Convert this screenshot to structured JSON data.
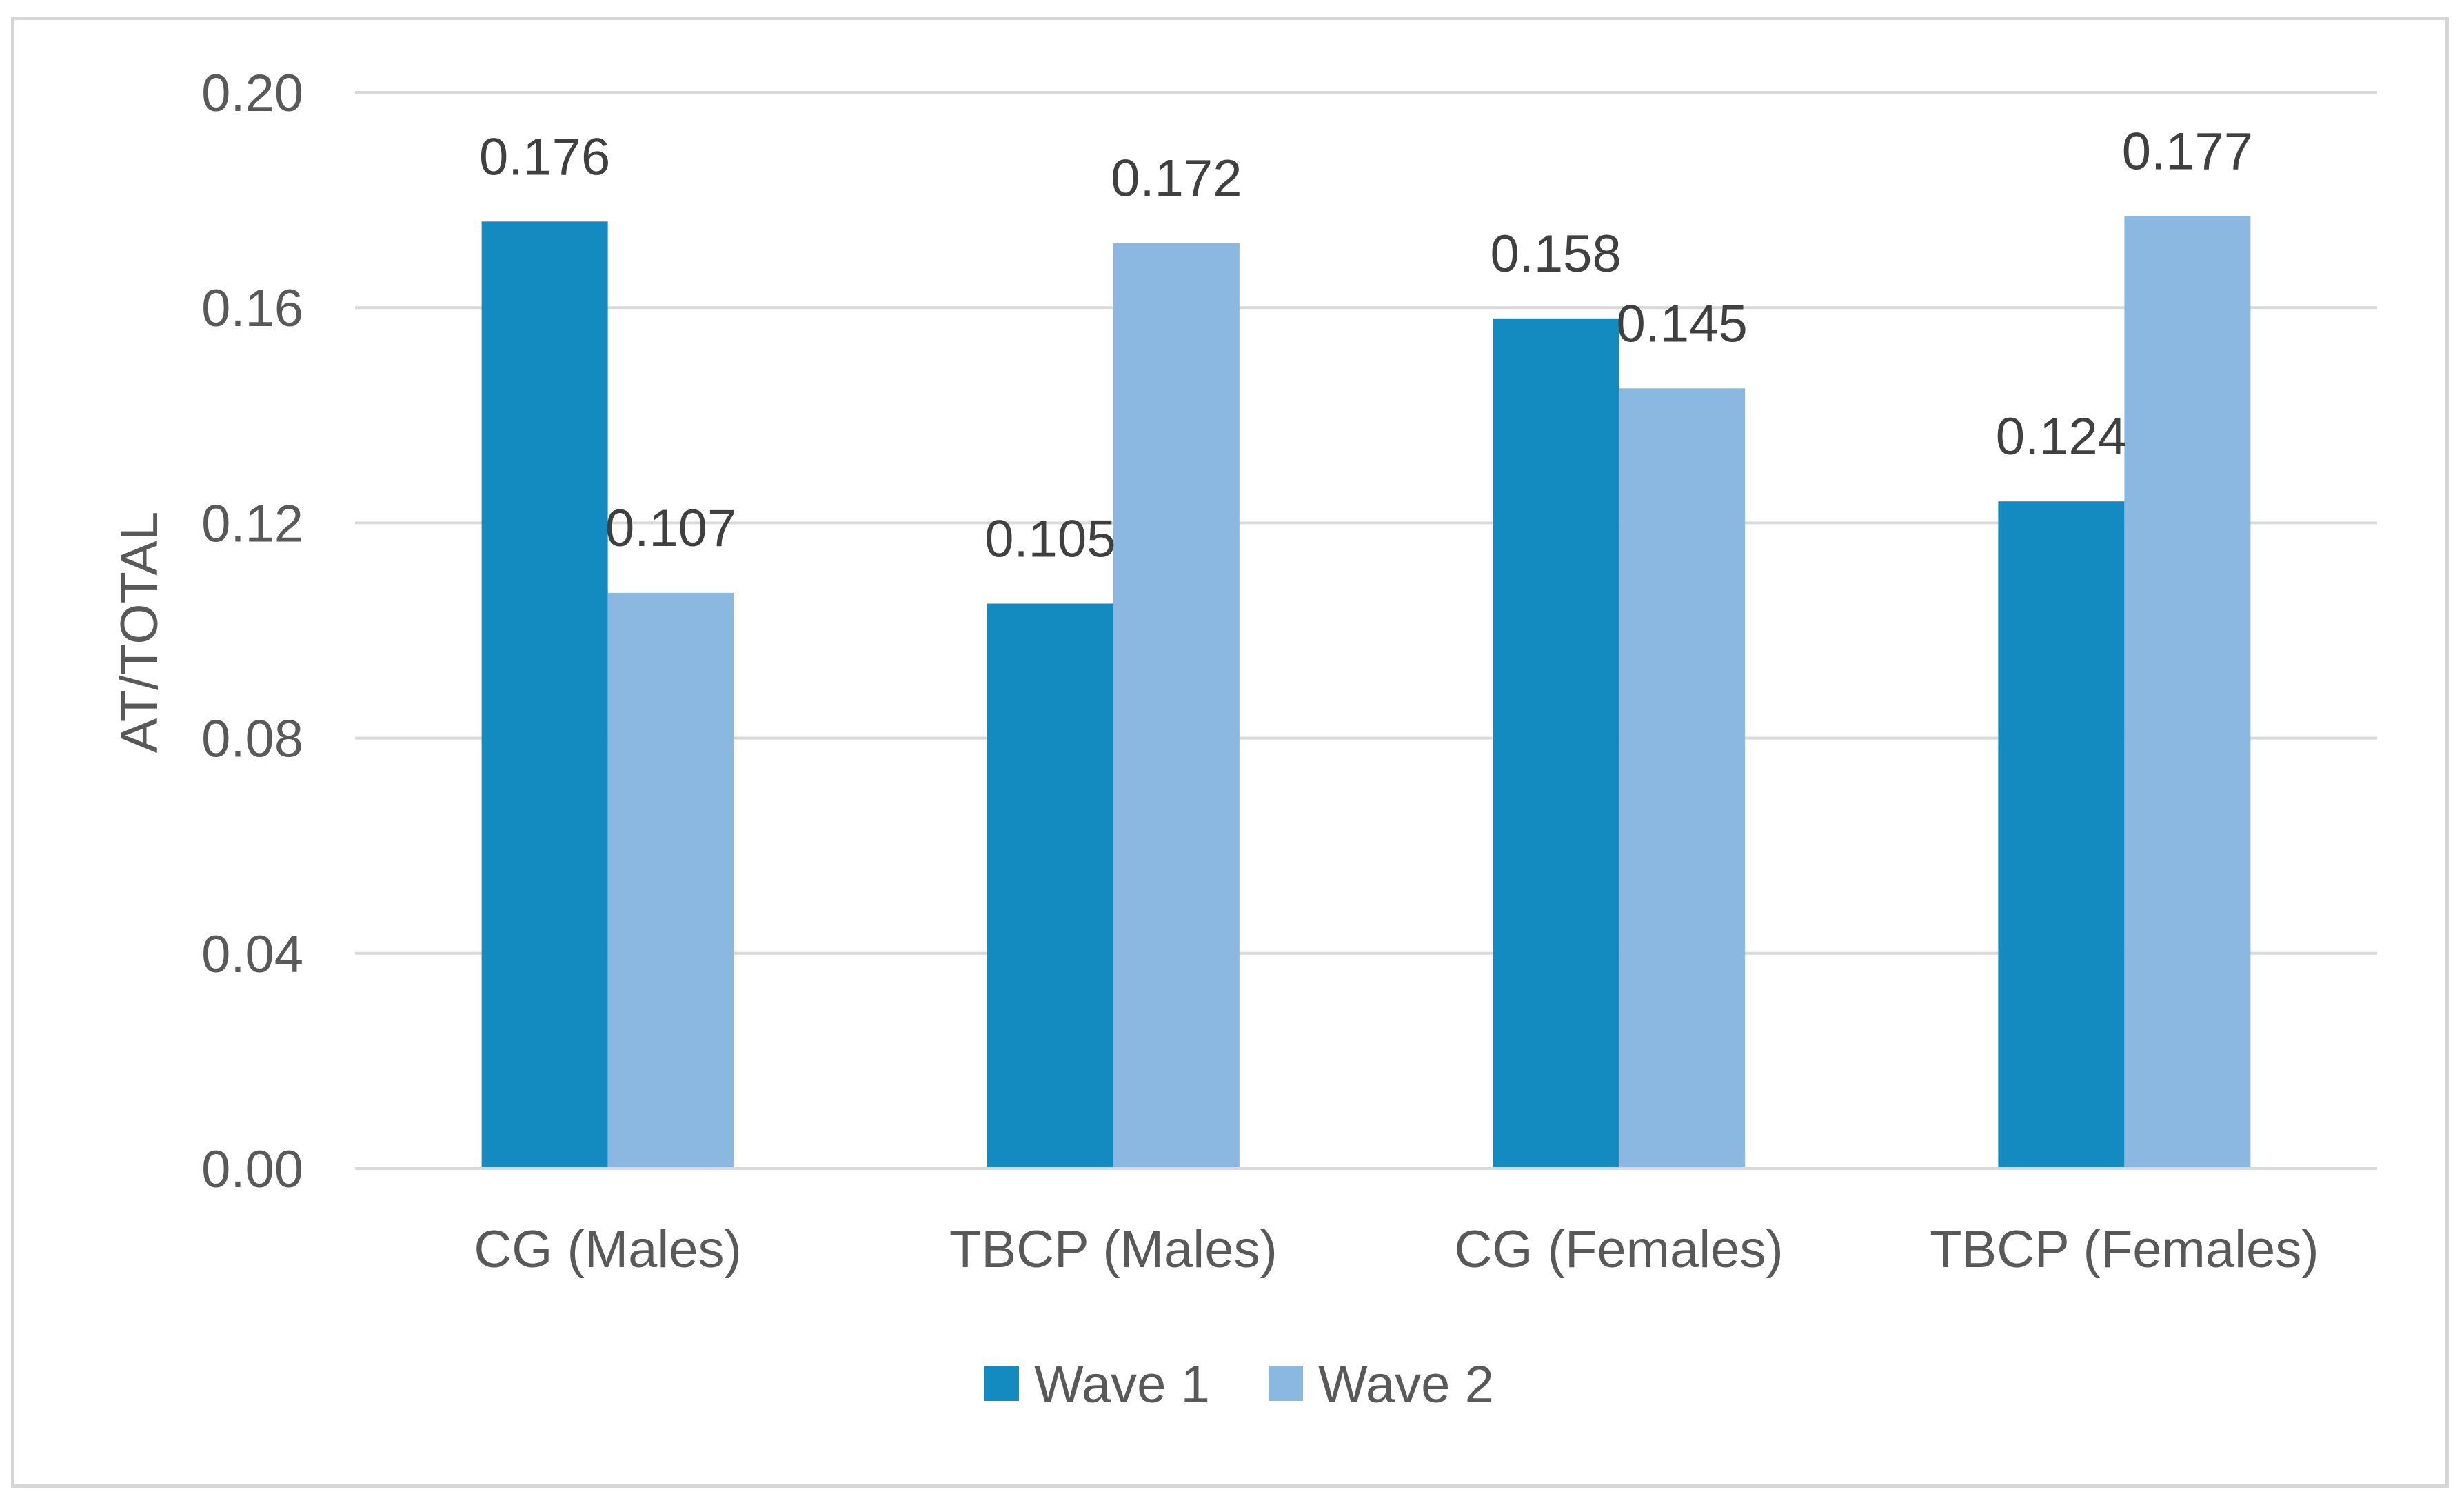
{
  "chart_data": {
    "type": "bar",
    "title": "",
    "xlabel": "",
    "ylabel": "AT/TOTAL",
    "ylim": [
      0,
      0.2
    ],
    "yticks": [
      "0.00",
      "0.04",
      "0.08",
      "0.12",
      "0.16",
      "0.20"
    ],
    "ytick_values": [
      0,
      0.04,
      0.08,
      0.12,
      0.16,
      0.2
    ],
    "categories": [
      "CG (Males)",
      "TBCP (Males)",
      "CG (Females)",
      "TBCP (Females)"
    ],
    "series": [
      {
        "name": "Wave 1",
        "color": "#138bc1",
        "values": [
          0.176,
          0.105,
          0.158,
          0.124
        ],
        "labels": [
          "0.176",
          "0.105",
          "0.158",
          "0.124"
        ]
      },
      {
        "name": "Wave 2",
        "color": "#8ab8e1",
        "values": [
          0.107,
          0.172,
          0.145,
          0.177
        ],
        "labels": [
          "0.107",
          "0.172",
          "0.145",
          "0.177"
        ]
      }
    ],
    "grid": true,
    "legend_position": "bottom",
    "gridline_color": "#d9d9d9",
    "axis_color": "#d9d9d9"
  }
}
